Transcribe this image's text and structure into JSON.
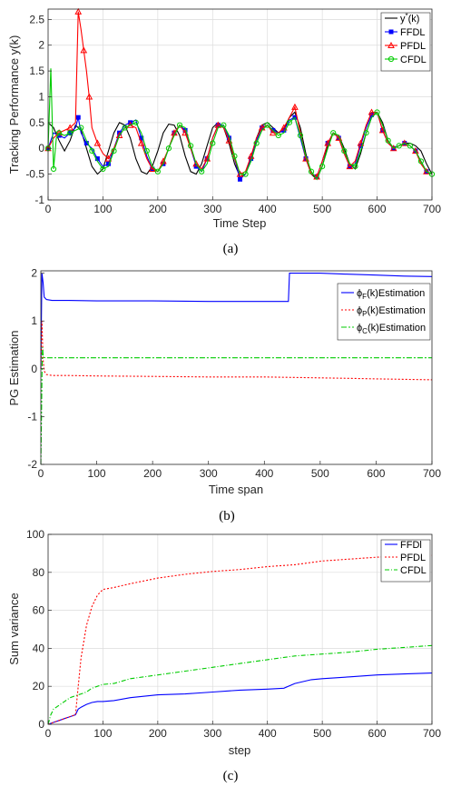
{
  "chart_data": [
    {
      "type": "line",
      "caption": "(a)",
      "xlabel": "Time Step",
      "ylabel": "Tracking Performance y(k)",
      "xlim": [
        0,
        700
      ],
      "ylim": [
        -1,
        2.7
      ],
      "xticks": [
        0,
        100,
        200,
        300,
        400,
        500,
        600,
        700
      ],
      "yticks": [
        -1,
        -0.5,
        0,
        0.5,
        1,
        1.5,
        2,
        2.5
      ],
      "ytick_labels": [
        "-1",
        "-0.5",
        "0",
        "0.5",
        "1",
        "1.5",
        "2",
        "2.5"
      ],
      "grid": true,
      "legend_position": "top-right",
      "series": [
        {
          "name": "y*(k)",
          "name_main": "y",
          "name_sup": "*",
          "name_rest": "(k)",
          "color": "#000000",
          "marker": "none",
          "x": [
            0,
            10,
            20,
            30,
            40,
            50,
            60,
            70,
            80,
            90,
            100,
            110,
            120,
            130,
            140,
            150,
            160,
            170,
            180,
            190,
            200,
            210,
            220,
            230,
            240,
            250,
            260,
            270,
            280,
            290,
            300,
            310,
            320,
            330,
            340,
            350,
            360,
            370,
            380,
            390,
            400,
            410,
            420,
            430,
            440,
            450,
            460,
            470,
            480,
            490,
            500,
            510,
            520,
            530,
            540,
            550,
            560,
            570,
            580,
            590,
            600,
            610,
            620,
            630,
            640,
            650,
            660,
            670,
            680,
            690,
            700
          ],
          "y": [
            0.5,
            0.4,
            0.15,
            -0.05,
            0.15,
            0.45,
            0.35,
            0.0,
            -0.35,
            -0.5,
            -0.4,
            -0.05,
            0.3,
            0.5,
            0.45,
            0.2,
            -0.2,
            -0.45,
            -0.5,
            -0.35,
            -0.05,
            0.3,
            0.47,
            0.45,
            0.25,
            -0.15,
            -0.45,
            -0.5,
            -0.3,
            0.05,
            0.4,
            0.5,
            0.4,
            0.1,
            -0.3,
            -0.55,
            -0.5,
            -0.2,
            0.2,
            0.45,
            0.5,
            0.4,
            0.3,
            0.35,
            0.6,
            0.7,
            0.4,
            -0.1,
            -0.5,
            -0.6,
            -0.35,
            0.05,
            0.3,
            0.25,
            0.0,
            -0.3,
            -0.4,
            -0.1,
            0.3,
            0.6,
            0.7,
            0.5,
            0.15,
            0.0,
            0.05,
            0.1,
            0.1,
            0.05,
            -0.05,
            -0.3,
            -0.5
          ]
        },
        {
          "name": "FFDL",
          "color": "#0000ff",
          "marker": "square",
          "x": [
            0,
            10,
            20,
            30,
            40,
            50,
            55,
            60,
            70,
            80,
            90,
            100,
            110,
            120,
            130,
            140,
            150,
            160,
            170,
            180,
            190,
            200,
            210,
            220,
            230,
            240,
            250,
            260,
            270,
            280,
            290,
            300,
            310,
            320,
            330,
            340,
            350,
            360,
            370,
            380,
            390,
            400,
            410,
            420,
            430,
            440,
            450,
            460,
            470,
            480,
            490,
            500,
            510,
            520,
            530,
            540,
            550,
            560,
            570,
            580,
            590,
            600,
            610,
            620,
            630,
            640,
            650,
            660,
            670,
            680,
            690,
            700
          ],
          "y": [
            0.0,
            0.3,
            0.25,
            0.2,
            0.3,
            0.4,
            0.6,
            0.3,
            0.1,
            0.0,
            -0.2,
            -0.35,
            -0.3,
            0.0,
            0.3,
            0.45,
            0.5,
            0.55,
            0.2,
            -0.15,
            -0.4,
            -0.45,
            -0.3,
            0.0,
            0.3,
            0.45,
            0.35,
            0.0,
            -0.35,
            -0.45,
            -0.2,
            0.2,
            0.45,
            0.45,
            0.2,
            -0.2,
            -0.6,
            -0.5,
            -0.2,
            0.15,
            0.4,
            0.45,
            0.35,
            0.3,
            0.35,
            0.55,
            0.6,
            0.2,
            -0.2,
            -0.5,
            -0.55,
            -0.25,
            0.1,
            0.3,
            0.2,
            -0.1,
            -0.35,
            -0.3,
            0.05,
            0.4,
            0.65,
            0.7,
            0.35,
            0.1,
            0.0,
            0.05,
            0.1,
            0.05,
            -0.05,
            -0.25,
            -0.45,
            -0.5
          ]
        },
        {
          "name": "PFDL",
          "color": "#ff0000",
          "marker": "triangle",
          "x": [
            0,
            10,
            20,
            30,
            40,
            50,
            55,
            60,
            65,
            70,
            75,
            80,
            90,
            100,
            110,
            120,
            130,
            140,
            150,
            160,
            170,
            180,
            190,
            200,
            210,
            220,
            230,
            240,
            250,
            260,
            270,
            280,
            290,
            300,
            310,
            320,
            330,
            340,
            350,
            360,
            370,
            380,
            390,
            400,
            410,
            420,
            430,
            440,
            450,
            460,
            470,
            480,
            490,
            500,
            510,
            520,
            530,
            540,
            550,
            560,
            570,
            580,
            590,
            600,
            610,
            620,
            630,
            640,
            650,
            660,
            670,
            680,
            690,
            700
          ],
          "y": [
            0.0,
            0.2,
            0.3,
            0.35,
            0.4,
            0.5,
            2.65,
            2.3,
            1.9,
            1.5,
            1.0,
            0.4,
            0.1,
            -0.1,
            -0.2,
            0.0,
            0.25,
            0.4,
            0.45,
            0.4,
            0.1,
            -0.2,
            -0.4,
            -0.45,
            -0.25,
            0.0,
            0.3,
            0.45,
            0.3,
            0.0,
            -0.3,
            -0.4,
            -0.2,
            0.2,
            0.45,
            0.4,
            0.15,
            -0.2,
            -0.5,
            -0.45,
            -0.15,
            0.2,
            0.4,
            0.45,
            0.3,
            0.3,
            0.4,
            0.6,
            0.8,
            0.3,
            -0.2,
            -0.5,
            -0.55,
            -0.25,
            0.1,
            0.3,
            0.2,
            -0.1,
            -0.35,
            -0.25,
            0.1,
            0.45,
            0.7,
            0.7,
            0.35,
            0.1,
            0.0,
            0.05,
            0.1,
            0.05,
            -0.05,
            -0.3,
            -0.45,
            -0.5
          ]
        },
        {
          "name": "CFDL",
          "color": "#00cc00",
          "marker": "circle",
          "x": [
            0,
            5,
            10,
            15,
            20,
            30,
            40,
            50,
            60,
            70,
            80,
            90,
            100,
            110,
            120,
            130,
            140,
            150,
            160,
            170,
            180,
            190,
            200,
            210,
            220,
            230,
            240,
            250,
            260,
            270,
            280,
            290,
            300,
            310,
            320,
            330,
            340,
            350,
            360,
            370,
            380,
            390,
            400,
            410,
            420,
            430,
            440,
            450,
            460,
            470,
            480,
            490,
            500,
            510,
            520,
            530,
            540,
            550,
            560,
            570,
            580,
            590,
            600,
            610,
            620,
            630,
            640,
            650,
            660,
            670,
            680,
            690,
            700
          ],
          "y": [
            0.0,
            1.55,
            -0.4,
            0.2,
            0.3,
            0.25,
            0.3,
            0.35,
            0.4,
            0.15,
            -0.05,
            -0.25,
            -0.4,
            -0.35,
            -0.05,
            0.25,
            0.4,
            0.45,
            0.5,
            0.3,
            -0.05,
            -0.35,
            -0.45,
            -0.3,
            0.0,
            0.25,
            0.45,
            0.4,
            0.05,
            -0.3,
            -0.45,
            -0.3,
            0.1,
            0.4,
            0.45,
            0.25,
            -0.15,
            -0.5,
            -0.5,
            -0.25,
            0.1,
            0.35,
            0.45,
            0.35,
            0.25,
            0.3,
            0.5,
            0.6,
            0.25,
            -0.15,
            -0.45,
            -0.6,
            -0.35,
            0.0,
            0.3,
            0.25,
            -0.05,
            -0.3,
            -0.35,
            -0.05,
            0.3,
            0.6,
            0.7,
            0.45,
            0.15,
            0.0,
            0.05,
            0.1,
            0.05,
            -0.05,
            -0.25,
            -0.45,
            -0.5
          ]
        }
      ]
    },
    {
      "type": "line",
      "caption": "(b)",
      "xlabel": "Time span",
      "ylabel": "PG Estimation",
      "xlim": [
        0,
        700
      ],
      "ylim": [
        -2,
        2.05
      ],
      "xticks": [
        0,
        100,
        200,
        300,
        400,
        500,
        600,
        700
      ],
      "yticks": [
        -2,
        -1,
        0,
        1,
        2
      ],
      "ytick_labels": [
        "-2",
        "-1",
        "0",
        "1",
        "2"
      ],
      "grid": false,
      "legend_position": "top-right",
      "series": [
        {
          "name": "ϕF(k)Estimation",
          "name_main": "ϕ",
          "name_sub": "F",
          "name_rest": "(k)Estimation",
          "color": "#0000ff",
          "dash": "",
          "x": [
            0,
            2,
            4,
            6,
            10,
            20,
            50,
            100,
            200,
            300,
            400,
            443,
            444,
            445,
            500,
            550,
            600,
            650,
            700
          ],
          "y": [
            0,
            2.0,
            1.8,
            1.5,
            1.45,
            1.43,
            1.43,
            1.42,
            1.42,
            1.41,
            1.41,
            1.41,
            1.7,
            2.0,
            2.0,
            1.98,
            1.96,
            1.94,
            1.93
          ]
        },
        {
          "name": "ϕP(k)Estimation",
          "name_main": "ϕ",
          "name_sub": "P",
          "name_rest": "(k)Estimation",
          "color": "#ff0000",
          "dash": "2,2",
          "x": [
            0,
            2,
            4,
            6,
            10,
            20,
            50,
            100,
            200,
            300,
            400,
            450,
            500,
            550,
            600,
            650,
            700
          ],
          "y": [
            0,
            1.0,
            0.2,
            -0.05,
            -0.12,
            -0.14,
            -0.14,
            -0.15,
            -0.16,
            -0.17,
            -0.17,
            -0.18,
            -0.19,
            -0.2,
            -0.21,
            -0.22,
            -0.23
          ]
        },
        {
          "name": "ϕC(k)Estimation",
          "name_main": "ϕ",
          "name_sub": "C",
          "name_rest": "(k)Estimation",
          "color": "#00cc00",
          "dash": "6,2,2,2",
          "x": [
            0,
            1,
            2,
            3,
            4,
            5,
            8,
            10,
            50,
            100,
            200,
            300,
            400,
            500,
            600,
            700
          ],
          "y": [
            -2.0,
            -1.2,
            -0.2,
            0.45,
            0.3,
            0.24,
            0.23,
            0.23,
            0.23,
            0.23,
            0.23,
            0.23,
            0.23,
            0.23,
            0.23,
            0.23
          ]
        }
      ]
    },
    {
      "type": "line",
      "caption": "(c)",
      "xlabel": "step",
      "ylabel": "Sum variance",
      "xlim": [
        0,
        700
      ],
      "ylim": [
        0,
        100
      ],
      "xticks": [
        0,
        100,
        200,
        300,
        400,
        500,
        600,
        700
      ],
      "yticks": [
        0,
        20,
        40,
        60,
        80,
        100
      ],
      "ytick_labels": [
        "0",
        "20",
        "40",
        "60",
        "80",
        "100"
      ],
      "grid": true,
      "legend_position": "top-right",
      "series": [
        {
          "name": "FFDl",
          "color": "#0000ff",
          "dash": "",
          "x": [
            0,
            10,
            20,
            30,
            40,
            50,
            55,
            60,
            70,
            80,
            90,
            100,
            120,
            150,
            200,
            250,
            300,
            350,
            400,
            430,
            450,
            480,
            500,
            550,
            600,
            650,
            700
          ],
          "y": [
            0,
            1,
            2,
            3,
            4,
            5,
            8,
            9,
            10.5,
            11.5,
            12,
            12,
            12.5,
            14,
            15.5,
            16,
            17,
            18,
            18.5,
            19,
            21.5,
            23.5,
            24,
            25,
            26,
            26.5,
            27
          ]
        },
        {
          "name": "PFDL",
          "color": "#ff0000",
          "dash": "2,2",
          "x": [
            0,
            10,
            20,
            30,
            40,
            50,
            55,
            60,
            70,
            80,
            90,
            100,
            120,
            150,
            200,
            250,
            300,
            350,
            400,
            450,
            500,
            550,
            600,
            650,
            700
          ],
          "y": [
            0,
            1,
            2,
            3,
            4,
            5,
            20,
            35,
            52,
            62,
            68,
            71,
            72,
            74,
            77,
            79,
            80.5,
            81.5,
            83,
            84,
            86,
            87,
            88,
            88.5,
            89
          ]
        },
        {
          "name": "CFDL",
          "color": "#00cc00",
          "dash": "5,2,1,2",
          "x": [
            0,
            5,
            10,
            20,
            30,
            40,
            50,
            60,
            70,
            80,
            90,
            100,
            120,
            150,
            200,
            250,
            300,
            350,
            400,
            450,
            500,
            550,
            600,
            650,
            700
          ],
          "y": [
            0,
            5,
            8,
            10,
            12,
            14,
            15,
            16,
            17,
            19,
            20,
            21,
            21.5,
            24,
            26,
            28,
            30,
            32,
            34,
            36,
            37,
            38,
            39.5,
            40.5,
            41.5
          ]
        }
      ]
    }
  ]
}
